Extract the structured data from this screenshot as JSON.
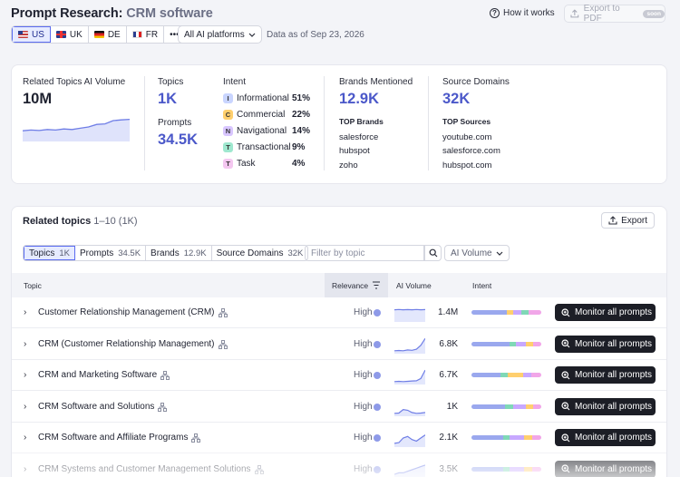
{
  "header": {
    "title_prefix": "Prompt Research:",
    "title_query": "CRM software",
    "how_it_works": "How it works",
    "export_pdf": "Export to PDF",
    "soon_badge": "soon"
  },
  "countries": [
    {
      "code": "US",
      "selected": true
    },
    {
      "code": "UK",
      "selected": false
    },
    {
      "code": "DE",
      "selected": false
    },
    {
      "code": "FR",
      "selected": false
    }
  ],
  "more_label": "•••",
  "platform_select": "All AI platforms",
  "data_as_of": "Data as of Sep 23, 2026",
  "summary": {
    "ai_volume_label": "Related Topics AI Volume",
    "ai_volume_value": "10M",
    "topics_label": "Topics",
    "topics_value": "1K",
    "prompts_label": "Prompts",
    "prompts_value": "34.5K",
    "intent_label": "Intent",
    "intents": [
      {
        "badge": "I",
        "name": "Informational",
        "pct": "51%",
        "color": "#c9d5ff"
      },
      {
        "badge": "C",
        "name": "Commercial",
        "pct": "22%",
        "color": "#ffcf6e"
      },
      {
        "badge": "N",
        "name": "Navigational",
        "pct": "14%",
        "color": "#d8c6ff"
      },
      {
        "badge": "T",
        "name": "Transactional",
        "pct": "9%",
        "color": "#9fe8cf"
      },
      {
        "badge": "T",
        "name": "Task",
        "pct": "4%",
        "color": "#f4c7f0"
      }
    ],
    "brands_label": "Brands Mentioned",
    "brands_value": "12.9K",
    "top_brands_label": "TOP Brands",
    "top_brands": [
      "salesforce",
      "hubspot",
      "zoho"
    ],
    "sources_label": "Source Domains",
    "sources_value": "32K",
    "top_sources_label": "TOP Sources",
    "top_sources": [
      "youtube.com",
      "salesforce.com",
      "hubspot.com"
    ],
    "trend": [
      0.35,
      0.38,
      0.36,
      0.4,
      0.38,
      0.42,
      0.4,
      0.45,
      0.5,
      0.6,
      0.62,
      0.75,
      0.78,
      0.8
    ]
  },
  "related": {
    "title": "Related topics",
    "range": "1–10 (1K)",
    "export_label": "Export",
    "tabs": [
      {
        "label": "Topics",
        "count": "1K",
        "selected": true
      },
      {
        "label": "Prompts",
        "count": "34.5K",
        "selected": false
      },
      {
        "label": "Brands",
        "count": "12.9K",
        "selected": false
      },
      {
        "label": "Source Domains",
        "count": "32K",
        "selected": false
      }
    ],
    "filter_placeholder": "Filter by topic",
    "sort_select": "AI Volume",
    "columns": {
      "topic": "Topic",
      "relevance": "Relevance",
      "volume": "AI Volume",
      "intent": "Intent"
    },
    "monitor_label": "Monitor all prompts",
    "rows": [
      {
        "name": "Customer Relationship Management (CRM)",
        "relevance": "High",
        "volume": "1.4M",
        "trend": [
          0.7,
          0.72,
          0.7,
          0.71,
          0.7,
          0.72,
          0.7,
          0.71
        ]
      },
      {
        "name": "CRM (Customer Relationship Management)",
        "relevance": "High",
        "volume": "6.8K",
        "trend": [
          0.1,
          0.12,
          0.1,
          0.15,
          0.13,
          0.2,
          0.45,
          0.9
        ]
      },
      {
        "name": "CRM and Marketing Software",
        "relevance": "High",
        "volume": "6.7K",
        "trend": [
          0.1,
          0.12,
          0.1,
          0.12,
          0.14,
          0.15,
          0.3,
          0.85
        ]
      },
      {
        "name": "CRM Software and Solutions",
        "relevance": "High",
        "volume": "1K",
        "trend": [
          0.1,
          0.12,
          0.35,
          0.3,
          0.15,
          0.1,
          0.12,
          0.15
        ]
      },
      {
        "name": "CRM Software and Affiliate Programs",
        "relevance": "High",
        "volume": "2.1K",
        "trend": [
          0.15,
          0.2,
          0.5,
          0.6,
          0.4,
          0.3,
          0.5,
          0.7
        ]
      },
      {
        "name": "CRM Systems and Customer Management Solutions",
        "relevance": "High",
        "volume": "3.5K",
        "trend": [
          0.2,
          0.3,
          0.3,
          0.4,
          0.5,
          0.6,
          0.7,
          0.8
        ]
      }
    ],
    "intent_bars": [
      [
        [
          "#9aa8ee",
          50
        ],
        [
          "#ffcf6e",
          10
        ],
        [
          "#c7a8ff",
          12
        ],
        [
          "#7fd8b6",
          10
        ],
        [
          "#f1a6e8",
          18
        ]
      ],
      [
        [
          "#9aa8ee",
          55
        ],
        [
          "#7fd8b6",
          8
        ],
        [
          "#c7a8ff",
          15
        ],
        [
          "#ffcf6e",
          10
        ],
        [
          "#f1a6e8",
          12
        ]
      ],
      [
        [
          "#9aa8ee",
          42
        ],
        [
          "#7fd8b6",
          10
        ],
        [
          "#ffcf6e",
          22
        ],
        [
          "#c7a8ff",
          12
        ],
        [
          "#f1a6e8",
          14
        ]
      ],
      [
        [
          "#9aa8ee",
          48
        ],
        [
          "#7fd8b6",
          12
        ],
        [
          "#c7a8ff",
          18
        ],
        [
          "#ffcf6e",
          10
        ],
        [
          "#f1a6e8",
          12
        ]
      ],
      [
        [
          "#9aa8ee",
          45
        ],
        [
          "#7fd8b6",
          10
        ],
        [
          "#c7a8ff",
          20
        ],
        [
          "#ffcf6e",
          12
        ],
        [
          "#f1a6e8",
          13
        ]
      ],
      [
        [
          "#9aa8ee",
          45
        ],
        [
          "#7fd8b6",
          10
        ],
        [
          "#c7a8ff",
          20
        ],
        [
          "#ffcf6e",
          12
        ],
        [
          "#f1a6e8",
          13
        ]
      ]
    ]
  }
}
